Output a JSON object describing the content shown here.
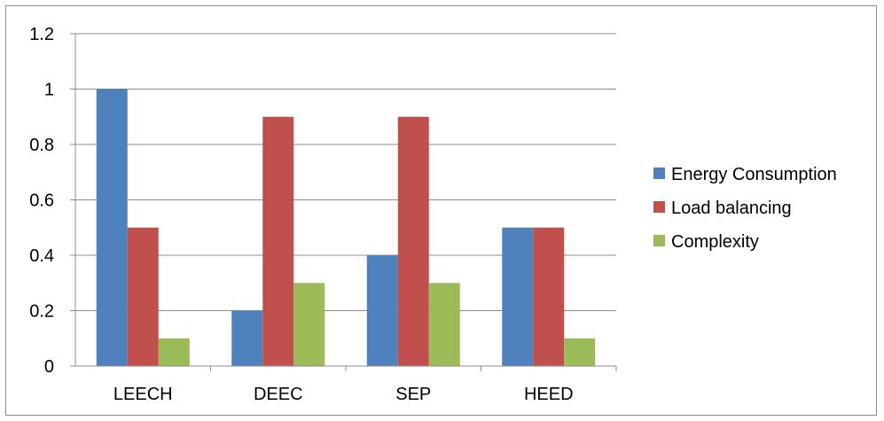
{
  "chart_data": {
    "type": "bar",
    "title": "",
    "xlabel": "",
    "ylabel": "",
    "categories": [
      "LEECH",
      "DEEC",
      "SEP",
      "HEED"
    ],
    "ylim": [
      0,
      1.2
    ],
    "yticks": [
      "0",
      "0.2",
      "0.4",
      "0.6",
      "0.8",
      "1",
      "1.2"
    ],
    "grid": true,
    "legend_position": "right",
    "series": [
      {
        "name": "Energy Consumption",
        "color": "#4f81bd",
        "values": [
          1.0,
          0.2,
          0.4,
          0.5
        ]
      },
      {
        "name": "Load balancing",
        "color": "#c0504d",
        "values": [
          0.5,
          0.9,
          0.9,
          0.5
        ]
      },
      {
        "name": "Complexity",
        "color": "#9bbb59",
        "values": [
          0.1,
          0.3,
          0.3,
          0.1
        ]
      }
    ]
  }
}
